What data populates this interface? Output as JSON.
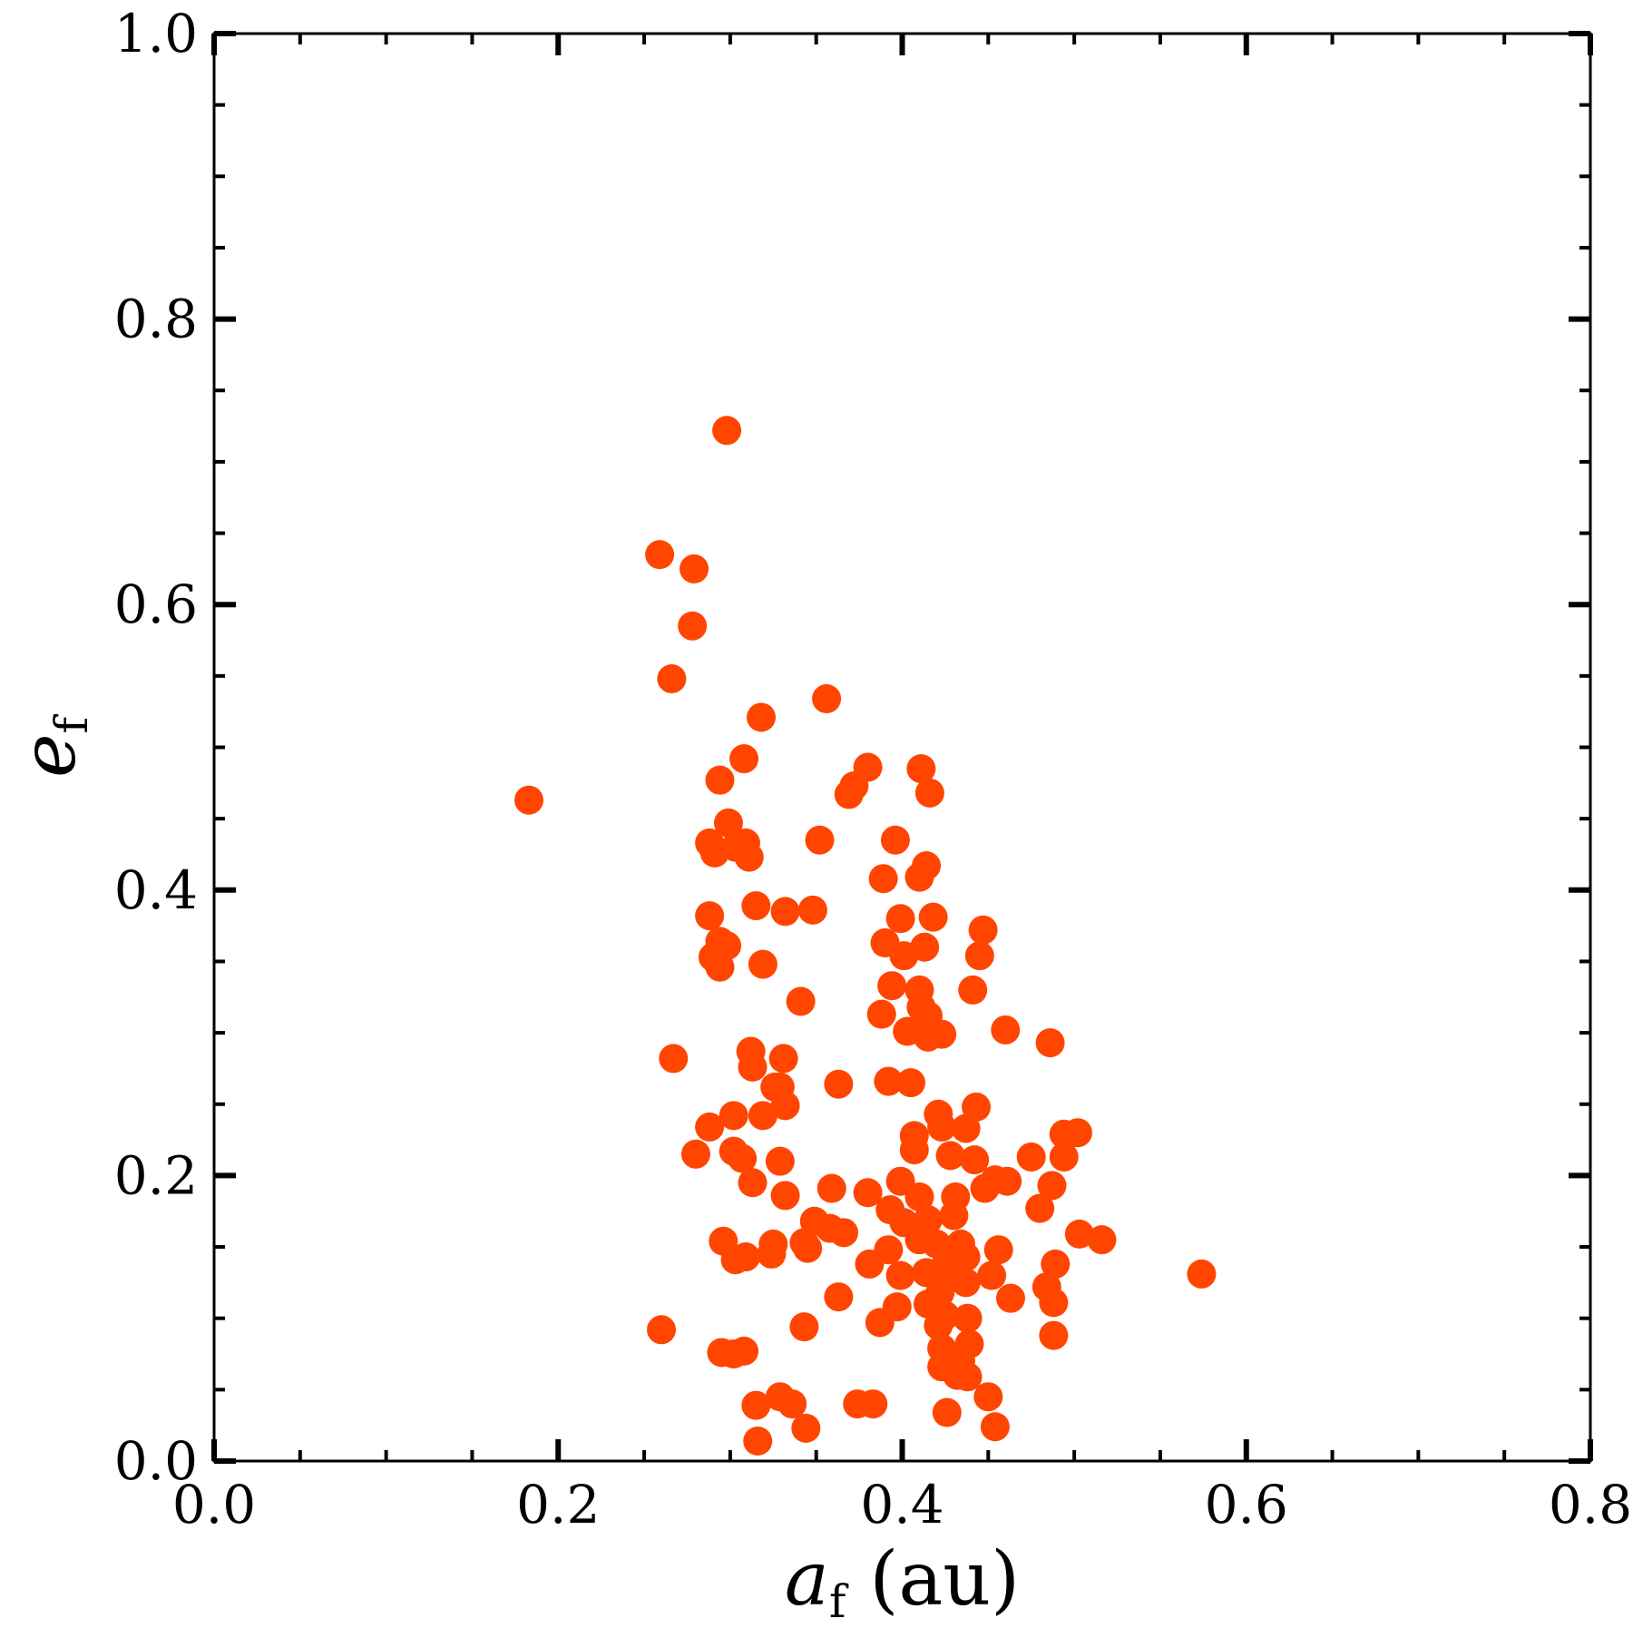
{
  "chart_data": {
    "type": "scatter",
    "xlabel": "a_f (au)",
    "ylabel": "e_f",
    "xlabel_parts": {
      "symbol": "a",
      "subscript": "f",
      "unit": " (au)"
    },
    "ylabel_parts": {
      "symbol": "e",
      "subscript": "f"
    },
    "xlim": [
      0.0,
      0.8
    ],
    "ylim": [
      0.0,
      1.0
    ],
    "x_ticks": [
      "0.0",
      "0.2",
      "0.4",
      "0.6",
      "0.8"
    ],
    "y_ticks": [
      "0.0",
      "0.2",
      "0.4",
      "0.6",
      "0.8",
      "1.0"
    ],
    "x_tick_values": [
      0.0,
      0.2,
      0.4,
      0.6,
      0.8
    ],
    "y_tick_values": [
      0.0,
      0.2,
      0.4,
      0.6,
      0.8,
      1.0
    ],
    "x_minor_step": 0.05,
    "y_minor_step": 0.05,
    "grid": false,
    "marker_color": "#FF4500",
    "axis_color": "#000000",
    "points": [
      [
        0.183,
        0.463
      ],
      [
        0.298,
        0.722
      ],
      [
        0.259,
        0.635
      ],
      [
        0.279,
        0.625
      ],
      [
        0.278,
        0.585
      ],
      [
        0.266,
        0.548
      ],
      [
        0.356,
        0.534
      ],
      [
        0.318,
        0.521
      ],
      [
        0.308,
        0.492
      ],
      [
        0.294,
        0.477
      ],
      [
        0.369,
        0.467
      ],
      [
        0.372,
        0.473
      ],
      [
        0.38,
        0.486
      ],
      [
        0.411,
        0.485
      ],
      [
        0.416,
        0.468
      ],
      [
        0.299,
        0.447
      ],
      [
        0.288,
        0.433
      ],
      [
        0.303,
        0.43
      ],
      [
        0.291,
        0.426
      ],
      [
        0.309,
        0.433
      ],
      [
        0.311,
        0.423
      ],
      [
        0.352,
        0.435
      ],
      [
        0.396,
        0.435
      ],
      [
        0.389,
        0.408
      ],
      [
        0.41,
        0.409
      ],
      [
        0.414,
        0.417
      ],
      [
        0.288,
        0.382
      ],
      [
        0.315,
        0.389
      ],
      [
        0.332,
        0.385
      ],
      [
        0.348,
        0.386
      ],
      [
        0.399,
        0.38
      ],
      [
        0.418,
        0.381
      ],
      [
        0.447,
        0.372
      ],
      [
        0.29,
        0.353
      ],
      [
        0.294,
        0.364
      ],
      [
        0.298,
        0.361
      ],
      [
        0.294,
        0.346
      ],
      [
        0.319,
        0.348
      ],
      [
        0.39,
        0.363
      ],
      [
        0.401,
        0.354
      ],
      [
        0.413,
        0.36
      ],
      [
        0.445,
        0.354
      ],
      [
        0.341,
        0.322
      ],
      [
        0.394,
        0.333
      ],
      [
        0.41,
        0.33
      ],
      [
        0.411,
        0.318
      ],
      [
        0.415,
        0.312
      ],
      [
        0.388,
        0.313
      ],
      [
        0.403,
        0.301
      ],
      [
        0.415,
        0.297
      ],
      [
        0.423,
        0.299
      ],
      [
        0.441,
        0.33
      ],
      [
        0.46,
        0.302
      ],
      [
        0.486,
        0.293
      ],
      [
        0.267,
        0.282
      ],
      [
        0.312,
        0.287
      ],
      [
        0.313,
        0.276
      ],
      [
        0.331,
        0.282
      ],
      [
        0.329,
        0.262
      ],
      [
        0.326,
        0.262
      ],
      [
        0.332,
        0.249
      ],
      [
        0.363,
        0.264
      ],
      [
        0.392,
        0.266
      ],
      [
        0.405,
        0.265
      ],
      [
        0.288,
        0.234
      ],
      [
        0.302,
        0.242
      ],
      [
        0.319,
        0.242
      ],
      [
        0.421,
        0.243
      ],
      [
        0.443,
        0.248
      ],
      [
        0.407,
        0.228
      ],
      [
        0.423,
        0.234
      ],
      [
        0.437,
        0.233
      ],
      [
        0.28,
        0.215
      ],
      [
        0.302,
        0.217
      ],
      [
        0.307,
        0.212
      ],
      [
        0.329,
        0.21
      ],
      [
        0.407,
        0.218
      ],
      [
        0.428,
        0.214
      ],
      [
        0.442,
        0.211
      ],
      [
        0.475,
        0.213
      ],
      [
        0.494,
        0.213
      ],
      [
        0.494,
        0.229
      ],
      [
        0.502,
        0.23
      ],
      [
        0.313,
        0.195
      ],
      [
        0.332,
        0.186
      ],
      [
        0.359,
        0.191
      ],
      [
        0.38,
        0.188
      ],
      [
        0.399,
        0.196
      ],
      [
        0.41,
        0.185
      ],
      [
        0.431,
        0.185
      ],
      [
        0.448,
        0.191
      ],
      [
        0.454,
        0.197
      ],
      [
        0.461,
        0.196
      ],
      [
        0.487,
        0.193
      ],
      [
        0.48,
        0.177
      ],
      [
        0.393,
        0.176
      ],
      [
        0.401,
        0.167
      ],
      [
        0.415,
        0.169
      ],
      [
        0.43,
        0.172
      ],
      [
        0.349,
        0.168
      ],
      [
        0.358,
        0.163
      ],
      [
        0.366,
        0.16
      ],
      [
        0.503,
        0.159
      ],
      [
        0.516,
        0.155
      ],
      [
        0.296,
        0.154
      ],
      [
        0.303,
        0.141
      ],
      [
        0.309,
        0.143
      ],
      [
        0.325,
        0.152
      ],
      [
        0.324,
        0.145
      ],
      [
        0.343,
        0.153
      ],
      [
        0.345,
        0.149
      ],
      [
        0.392,
        0.148
      ],
      [
        0.41,
        0.155
      ],
      [
        0.42,
        0.152
      ],
      [
        0.426,
        0.141
      ],
      [
        0.434,
        0.152
      ],
      [
        0.437,
        0.143
      ],
      [
        0.456,
        0.148
      ],
      [
        0.489,
        0.138
      ],
      [
        0.381,
        0.138
      ],
      [
        0.399,
        0.13
      ],
      [
        0.414,
        0.132
      ],
      [
        0.428,
        0.128
      ],
      [
        0.437,
        0.125
      ],
      [
        0.452,
        0.13
      ],
      [
        0.574,
        0.131
      ],
      [
        0.484,
        0.122
      ],
      [
        0.488,
        0.111
      ],
      [
        0.463,
        0.114
      ],
      [
        0.363,
        0.115
      ],
      [
        0.397,
        0.108
      ],
      [
        0.415,
        0.11
      ],
      [
        0.422,
        0.118
      ],
      [
        0.425,
        0.102
      ],
      [
        0.438,
        0.1
      ],
      [
        0.387,
        0.097
      ],
      [
        0.421,
        0.095
      ],
      [
        0.343,
        0.094
      ],
      [
        0.26,
        0.092
      ],
      [
        0.488,
        0.088
      ],
      [
        0.439,
        0.082
      ],
      [
        0.423,
        0.079
      ],
      [
        0.295,
        0.076
      ],
      [
        0.302,
        0.075
      ],
      [
        0.308,
        0.077
      ],
      [
        0.428,
        0.072
      ],
      [
        0.434,
        0.07
      ],
      [
        0.423,
        0.066
      ],
      [
        0.432,
        0.06
      ],
      [
        0.438,
        0.059
      ],
      [
        0.45,
        0.045
      ],
      [
        0.329,
        0.045
      ],
      [
        0.315,
        0.039
      ],
      [
        0.336,
        0.04
      ],
      [
        0.374,
        0.04
      ],
      [
        0.383,
        0.04
      ],
      [
        0.426,
        0.034
      ],
      [
        0.344,
        0.023
      ],
      [
        0.454,
        0.024
      ],
      [
        0.316,
        0.014
      ]
    ]
  }
}
